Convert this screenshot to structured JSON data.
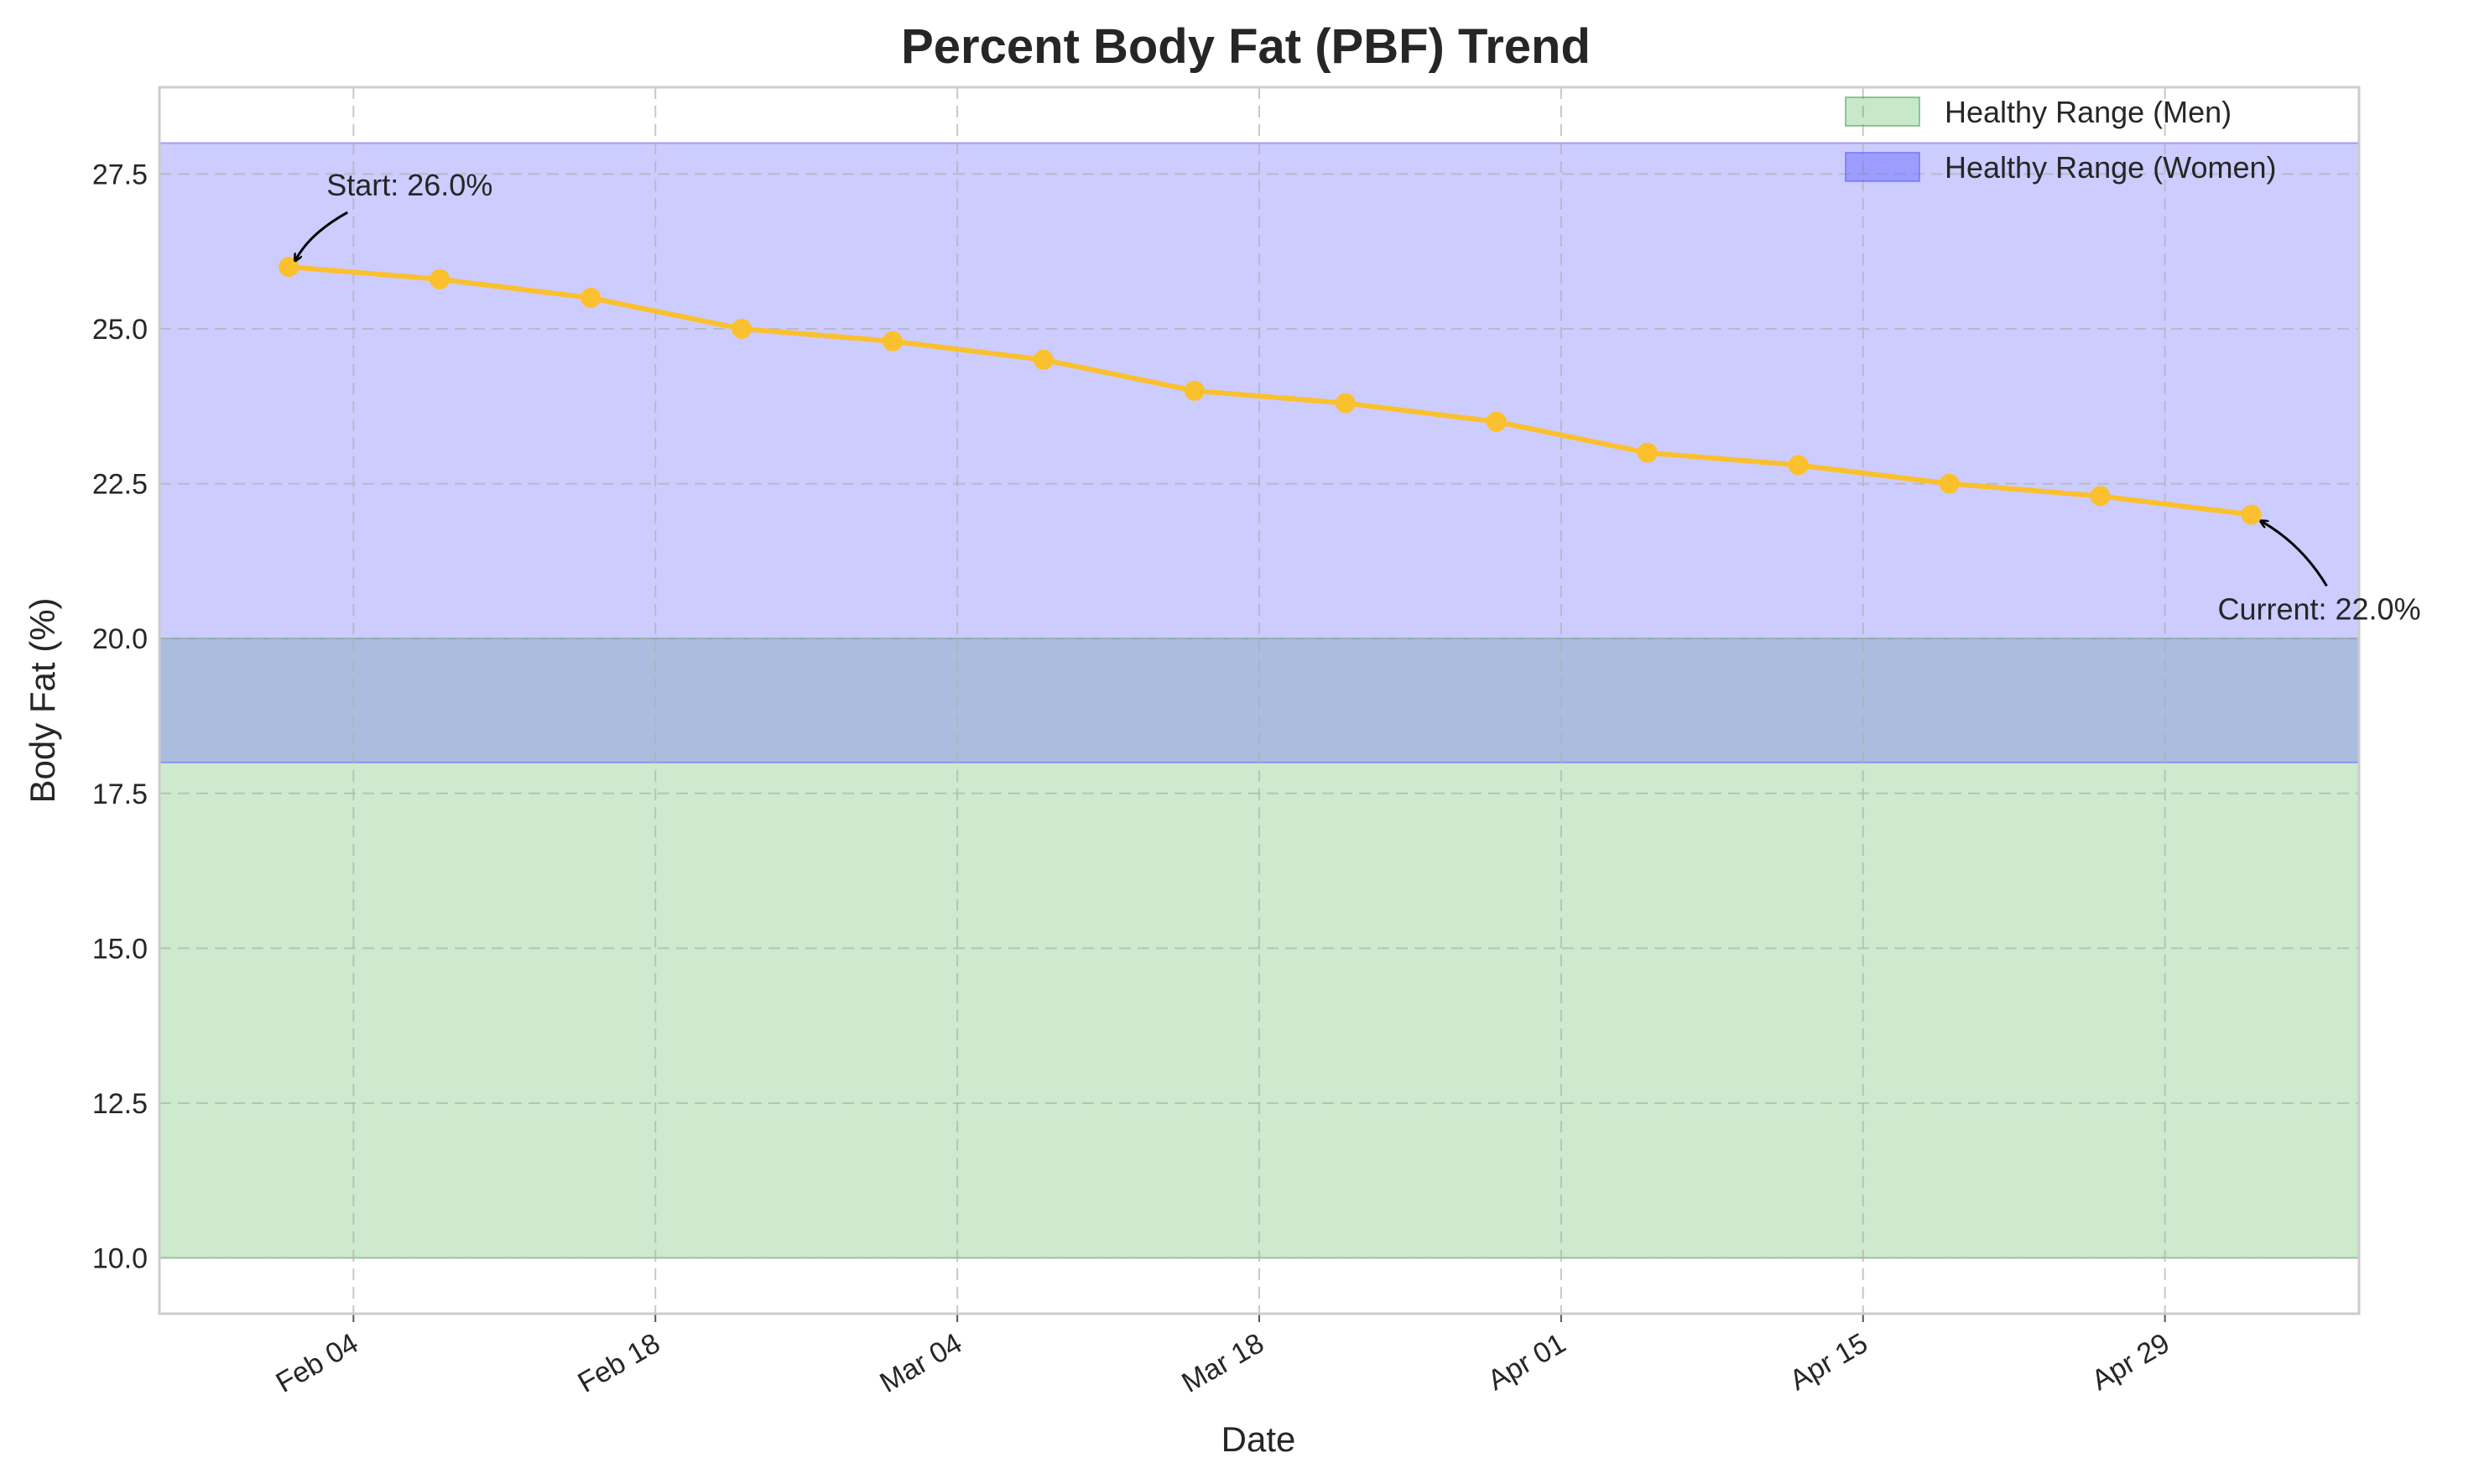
{
  "chart_data": {
    "type": "line",
    "title": "Percent Body Fat (PBF) Trend",
    "xlabel": "Date",
    "ylabel": "Body Fat (%)",
    "xlim": [
      "2025-01-26",
      "2025-05-08"
    ],
    "ylim": [
      9.1,
      28.9
    ],
    "yticks": [
      10.0,
      12.5,
      15.0,
      17.5,
      20.0,
      22.5,
      25.0,
      27.5
    ],
    "xticks": [
      {
        "date": "2025-02-04",
        "label": "Feb 04"
      },
      {
        "date": "2025-02-18",
        "label": "Feb 18"
      },
      {
        "date": "2025-03-04",
        "label": "Mar 04"
      },
      {
        "date": "2025-03-18",
        "label": "Mar 18"
      },
      {
        "date": "2025-04-01",
        "label": "Apr 01"
      },
      {
        "date": "2025-04-15",
        "label": "Apr 15"
      },
      {
        "date": "2025-04-29",
        "label": "Apr 29"
      }
    ],
    "grid": true,
    "legend_position": "top-right",
    "series": [
      {
        "color": "#fbc02d",
        "x": [
          "2025-02-01",
          "2025-02-08",
          "2025-02-15",
          "2025-02-22",
          "2025-03-01",
          "2025-03-08",
          "2025-03-15",
          "2025-03-22",
          "2025-03-29",
          "2025-04-05",
          "2025-04-12",
          "2025-04-19",
          "2025-04-26",
          "2025-05-03"
        ],
        "y": [
          26.0,
          25.8,
          25.5,
          25.0,
          24.8,
          24.5,
          24.0,
          23.8,
          23.5,
          23.0,
          22.8,
          22.5,
          22.3,
          22.0
        ]
      }
    ],
    "bands": [
      {
        "name": "Healthy Range (Men)",
        "y_range": [
          10.0,
          20.0
        ],
        "color": "#4caf50",
        "opacity": 0.28
      },
      {
        "name": "Healthy Range (Women)",
        "y_range": [
          18.0,
          28.0
        ],
        "color": "#6464ff",
        "opacity": 0.33
      }
    ],
    "annotations": [
      {
        "text": "Start: 26.0%",
        "x": "2025-02-01",
        "y": 26.0,
        "position": "upper-right"
      },
      {
        "text": "Current: 22.0%",
        "x": "2025-05-03",
        "y": 22.0,
        "position": "lower-right"
      }
    ]
  }
}
